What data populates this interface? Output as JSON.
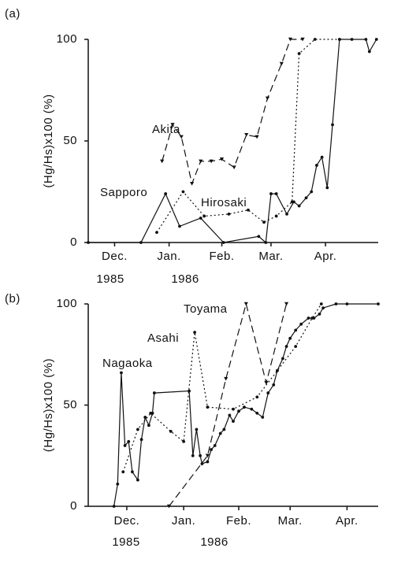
{
  "chart_data": [
    {
      "type": "line",
      "title": "(a)",
      "ylabel": "(Hg/Hs)x100 (%)",
      "xlim": [
        0,
        165
      ],
      "ylim": [
        0,
        100
      ],
      "yticks": [
        0,
        50,
        100
      ],
      "xticks": [
        {
          "value": 15,
          "label": "Dec."
        },
        {
          "value": 46,
          "label": "Jan."
        },
        {
          "value": 76,
          "label": "Feb."
        },
        {
          "value": 104,
          "label": "Mar."
        },
        {
          "value": 135,
          "label": "Apr."
        }
      ],
      "annotations": [
        "1985",
        "1986"
      ],
      "series": [
        {
          "name": "Akita",
          "color": "#111111",
          "linestyle": "dashed",
          "marker": "triangle",
          "x": [
            42,
            48,
            53,
            59,
            64,
            70,
            76,
            83,
            90,
            96,
            102,
            110,
            115,
            122
          ],
          "values": [
            40,
            58,
            52,
            29,
            40,
            40,
            41,
            37,
            53,
            52,
            71,
            88,
            100,
            100
          ]
        },
        {
          "name": "Sapporo",
          "color": "#111111",
          "linestyle": "solid",
          "marker": "dot",
          "x": [
            0,
            30,
            44,
            52,
            64,
            77,
            97,
            101,
            104,
            107,
            113,
            117,
            120,
            124,
            127,
            130,
            133,
            136,
            139,
            143,
            150,
            158,
            160,
            164
          ],
          "values": [
            0,
            0,
            24,
            8,
            12,
            0,
            3,
            0,
            24,
            24,
            14,
            20,
            18,
            22,
            25,
            38,
            42,
            27,
            58,
            100,
            100,
            100,
            94,
            100
          ]
        },
        {
          "name": "Hirosaki",
          "color": "#111111",
          "linestyle": "dotted",
          "marker": "dot",
          "x": [
            39,
            54,
            66,
            80,
            91,
            100,
            107,
            116,
            120,
            129,
            143
          ],
          "values": [
            5,
            25,
            13,
            14,
            16,
            10,
            13,
            20,
            93,
            100,
            100
          ]
        }
      ]
    },
    {
      "type": "line",
      "title": "(b)",
      "ylabel": "(Hg/Hs)x100 (%)",
      "xlim": [
        -6,
        152
      ],
      "ylim": [
        0,
        100
      ],
      "yticks": [
        0,
        50,
        100
      ],
      "xticks": [
        {
          "value": 15,
          "label": "Dec."
        },
        {
          "value": 46,
          "label": "Jan."
        },
        {
          "value": 76,
          "label": "Feb."
        },
        {
          "value": 104,
          "label": "Mar."
        },
        {
          "value": 135,
          "label": "Apr."
        }
      ],
      "annotations": [
        "1985",
        "1986"
      ],
      "series": [
        {
          "name": "Nagaoka",
          "color": "#111111",
          "linestyle": "solid",
          "marker": "dot",
          "x": [
            8,
            10,
            12,
            14,
            16,
            18,
            21,
            23,
            25,
            27,
            29,
            30,
            49,
            51,
            53,
            55,
            56,
            59,
            61,
            63,
            66,
            68,
            71,
            73,
            76,
            79,
            83,
            86,
            89,
            92,
            95,
            97,
            100,
            102,
            104,
            107,
            110,
            114,
            117,
            120,
            122,
            129,
            135,
            152
          ],
          "values": [
            0,
            11,
            66,
            30,
            32,
            17,
            13,
            33,
            44,
            40,
            46,
            56,
            57,
            25,
            38,
            25,
            21,
            22,
            28,
            30,
            36,
            38,
            45,
            42,
            47,
            49,
            48,
            46,
            44,
            56,
            60,
            67,
            73,
            79,
            83,
            87,
            90,
            93,
            93,
            95,
            98,
            100,
            100,
            100
          ]
        },
        {
          "name": "Asahi",
          "color": "#111111",
          "linestyle": "dotted",
          "marker": "dot",
          "x": [
            13,
            21,
            28,
            39,
            46,
            52,
            59,
            73,
            86,
            97,
            107,
            116,
            121
          ],
          "values": [
            17,
            38,
            46,
            37,
            32,
            86,
            49,
            48,
            54,
            67,
            79,
            93,
            100
          ]
        },
        {
          "name": "Toyama",
          "color": "#111111",
          "linestyle": "dashed",
          "marker": "triangle",
          "x": [
            38,
            59,
            69,
            80,
            91,
            102
          ],
          "values": [
            0,
            25,
            63,
            100,
            61,
            100
          ]
        }
      ]
    }
  ]
}
